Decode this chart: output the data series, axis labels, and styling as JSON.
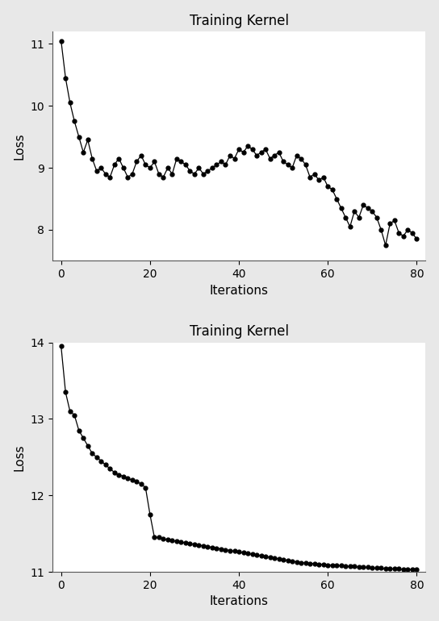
{
  "title": "Training Kernel",
  "xlabel": "Iterations",
  "ylabel": "Loss",
  "plot1": {
    "x": [
      0,
      1,
      2,
      3,
      4,
      5,
      6,
      7,
      8,
      9,
      10,
      11,
      12,
      13,
      14,
      15,
      16,
      17,
      18,
      19,
      20,
      21,
      22,
      23,
      24,
      25,
      26,
      27,
      28,
      29,
      30,
      31,
      32,
      33,
      34,
      35,
      36,
      37,
      38,
      39,
      40,
      41,
      42,
      43,
      44,
      45,
      46,
      47,
      48,
      49,
      50,
      51,
      52,
      53,
      54,
      55,
      56,
      57,
      58,
      59,
      60,
      61,
      62,
      63,
      64,
      65,
      66,
      67,
      68,
      69,
      70,
      71,
      72,
      73,
      74,
      75,
      76,
      77,
      78,
      79,
      80
    ],
    "y": [
      11.05,
      10.45,
      10.05,
      9.75,
      9.5,
      9.25,
      9.45,
      9.15,
      8.95,
      9.0,
      8.9,
      8.85,
      9.05,
      9.15,
      9.0,
      8.85,
      8.9,
      9.1,
      9.2,
      9.05,
      9.0,
      9.1,
      8.9,
      8.85,
      9.0,
      8.9,
      9.15,
      9.1,
      9.05,
      8.95,
      8.9,
      9.0,
      8.9,
      8.95,
      9.0,
      9.05,
      9.1,
      9.05,
      9.2,
      9.15,
      9.3,
      9.25,
      9.35,
      9.3,
      9.2,
      9.25,
      9.3,
      9.15,
      9.2,
      9.25,
      9.1,
      9.05,
      9.0,
      9.2,
      9.15,
      9.05,
      8.85,
      8.9,
      8.8,
      8.85,
      8.7,
      8.65,
      8.5,
      8.35,
      8.2,
      8.05,
      8.3,
      8.2,
      8.4,
      8.35,
      8.3,
      8.2,
      8.0,
      7.75,
      8.1,
      8.15,
      7.95,
      7.9,
      8.0,
      7.95,
      7.85
    ],
    "ylim": [
      7.5,
      11.2
    ],
    "yticks": [
      8,
      9,
      10,
      11
    ]
  },
  "plot2": {
    "x": [
      0,
      1,
      2,
      3,
      4,
      5,
      6,
      7,
      8,
      9,
      10,
      11,
      12,
      13,
      14,
      15,
      16,
      17,
      18,
      19,
      20,
      21,
      22,
      23,
      24,
      25,
      26,
      27,
      28,
      29,
      30,
      31,
      32,
      33,
      34,
      35,
      36,
      37,
      38,
      39,
      40,
      41,
      42,
      43,
      44,
      45,
      46,
      47,
      48,
      49,
      50,
      51,
      52,
      53,
      54,
      55,
      56,
      57,
      58,
      59,
      60,
      61,
      62,
      63,
      64,
      65,
      66,
      67,
      68,
      69,
      70,
      71,
      72,
      73,
      74,
      75,
      76,
      77,
      78,
      79,
      80
    ],
    "y": [
      13.95,
      13.35,
      13.1,
      13.05,
      12.85,
      12.75,
      12.65,
      12.55,
      12.5,
      12.45,
      12.4,
      12.35,
      12.3,
      12.27,
      12.25,
      12.22,
      12.2,
      12.18,
      12.15,
      12.1,
      11.75,
      11.45,
      11.45,
      11.43,
      11.42,
      11.41,
      11.4,
      11.39,
      11.38,
      11.37,
      11.36,
      11.35,
      11.34,
      11.33,
      11.32,
      11.31,
      11.3,
      11.29,
      11.28,
      11.27,
      11.26,
      11.25,
      11.24,
      11.23,
      11.22,
      11.21,
      11.2,
      11.19,
      11.18,
      11.17,
      11.16,
      11.15,
      11.14,
      11.13,
      11.12,
      11.12,
      11.11,
      11.11,
      11.1,
      11.1,
      11.09,
      11.09,
      11.08,
      11.08,
      11.07,
      11.07,
      11.07,
      11.06,
      11.06,
      11.06,
      11.05,
      11.05,
      11.05,
      11.04,
      11.04,
      11.04,
      11.04,
      11.03,
      11.03,
      11.03,
      11.03
    ],
    "ylim": [
      11.0,
      14.0
    ],
    "yticks": [
      11,
      12,
      13,
      14
    ]
  },
  "line_color": "#000000",
  "marker": "o",
  "markersize": 3.5,
  "linewidth": 0.9,
  "figsize": [
    5.44,
    7.7
  ],
  "dpi": 100,
  "fig_facecolor": "#e8e8e8",
  "ax_facecolor": "#ffffff",
  "title_fontsize": 12,
  "label_fontsize": 11,
  "tick_fontsize": 10
}
